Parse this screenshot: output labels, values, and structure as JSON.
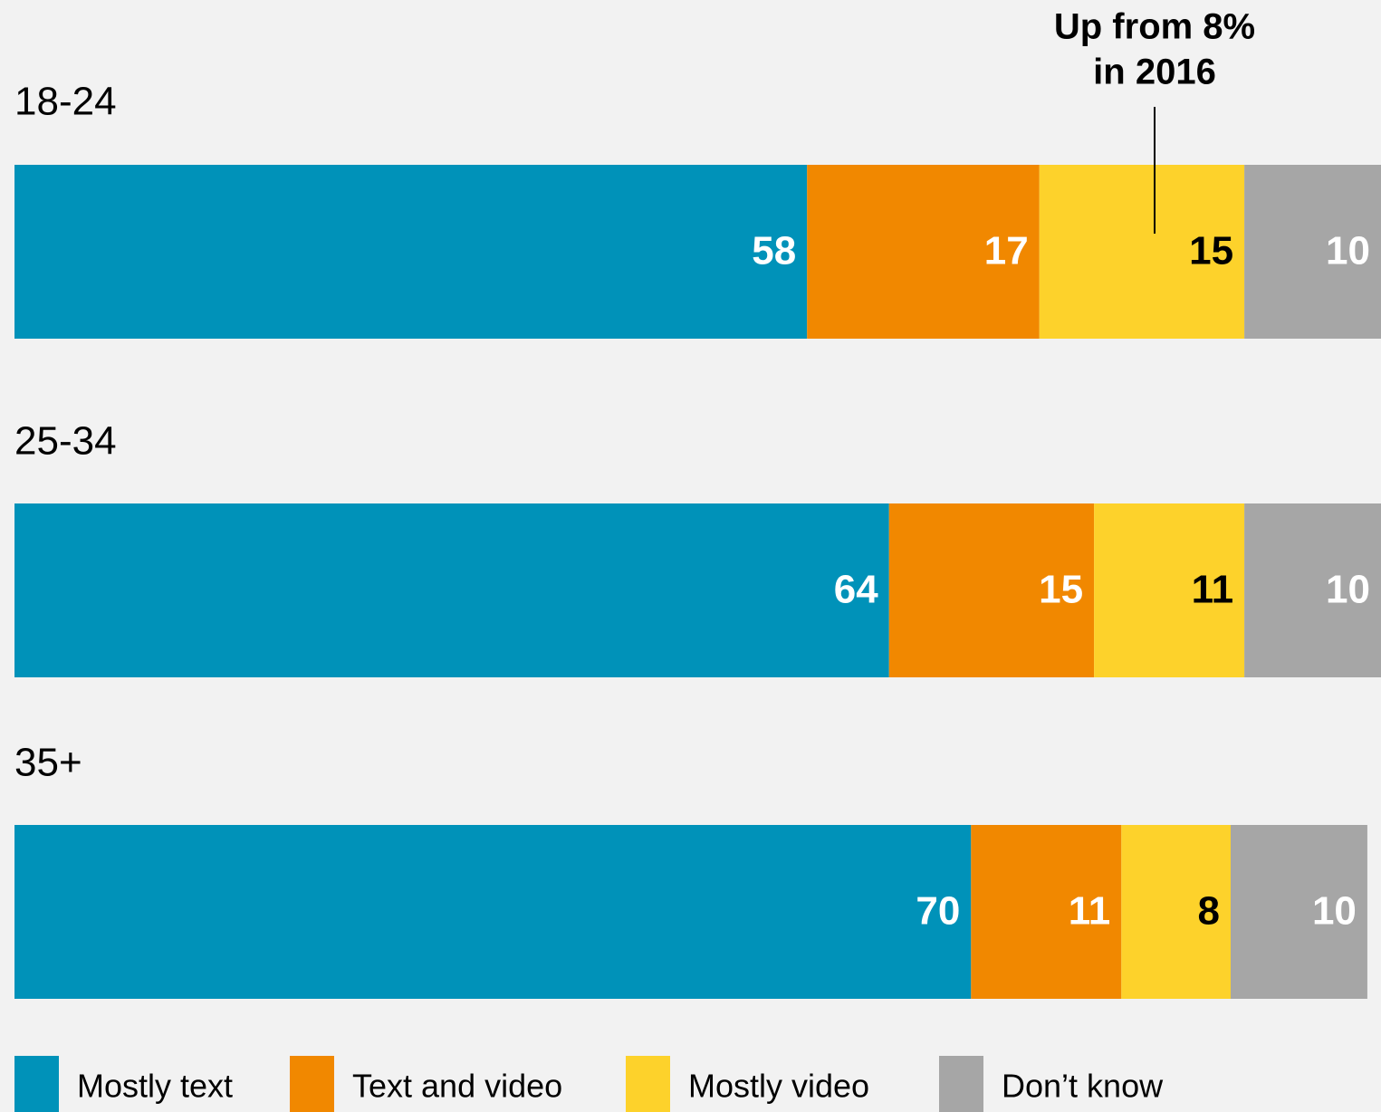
{
  "chart_data": {
    "type": "stacked_bar_horizontal",
    "annotation": [
      "Up from 8%",
      "in 2016"
    ],
    "categories": [
      "18-24",
      "25-34",
      "35+"
    ],
    "series": [
      {
        "name": "Mostly text",
        "color": "#0092b9",
        "label_color": "#ffffff",
        "values": [
          58,
          64,
          70
        ]
      },
      {
        "name": "Text and video",
        "color": "#f18800",
        "label_color": "#ffffff",
        "values": [
          17,
          15,
          11
        ]
      },
      {
        "name": "Mostly video",
        "color": "#fdd22b",
        "label_color": "#000000",
        "values": [
          15,
          11,
          8
        ]
      },
      {
        "name": "Don’t know",
        "color": "#a6a6a6",
        "label_color": "#ffffff",
        "values": [
          10,
          10,
          10
        ]
      }
    ],
    "xlim": [
      0,
      100
    ]
  }
}
